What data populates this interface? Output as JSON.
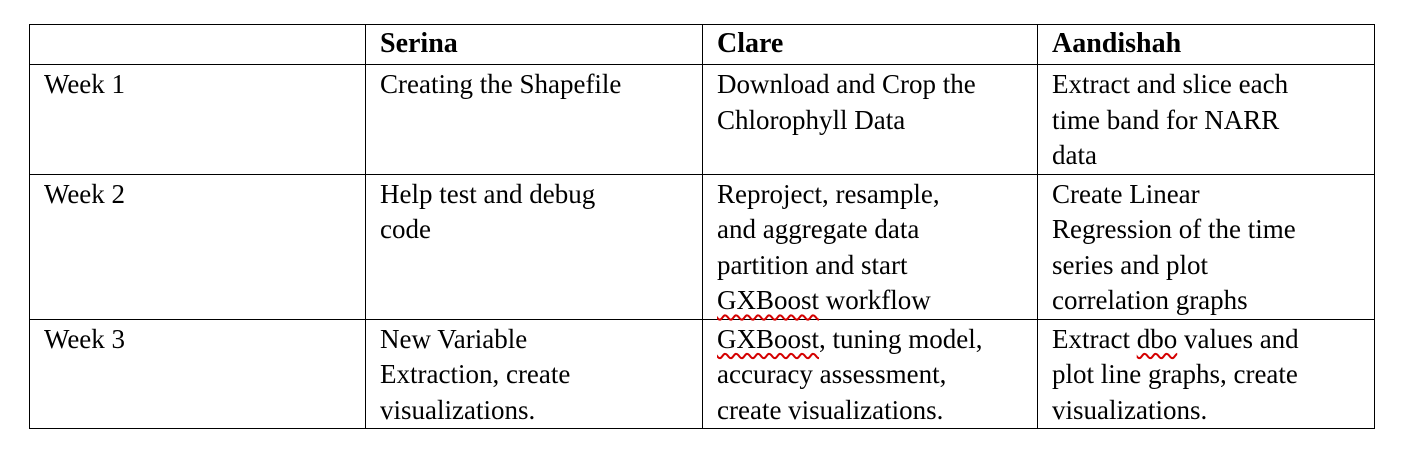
{
  "table": {
    "headers": [
      "",
      "Serina",
      "Clare",
      "Aandishah"
    ],
    "rows": [
      {
        "week": "Week 1",
        "serina": [
          "Creating the Shapefile"
        ],
        "clare": [
          "Download and Crop the",
          "Chlorophyll Data"
        ],
        "aandishah": [
          "Extract and slice each",
          "time band for NARR",
          "data"
        ]
      },
      {
        "week": "Week 2",
        "serina": [
          "Help test and debug",
          "code"
        ],
        "clare": [
          "Reproject, resample,",
          "and aggregate data",
          "partition and start",
          "GXBoost",
          " workflow"
        ],
        "aandishah": [
          "Create Linear",
          "Regression of the time",
          "series and plot",
          "correlation graphs"
        ]
      },
      {
        "week": "Week 3",
        "serina": [
          "New Variable",
          "Extraction, create",
          "visualizations."
        ],
        "clare": [
          "GXBoost",
          ", tuning model,",
          "accuracy assessment,",
          "create visualizations."
        ],
        "aandishah": [
          "Extract ",
          "dbo",
          " values and",
          "plot line graphs, create",
          "visualizations."
        ]
      }
    ]
  },
  "colors": {
    "text": "#000000",
    "border": "#000000",
    "spellcheck_underline": "#d40000"
  }
}
